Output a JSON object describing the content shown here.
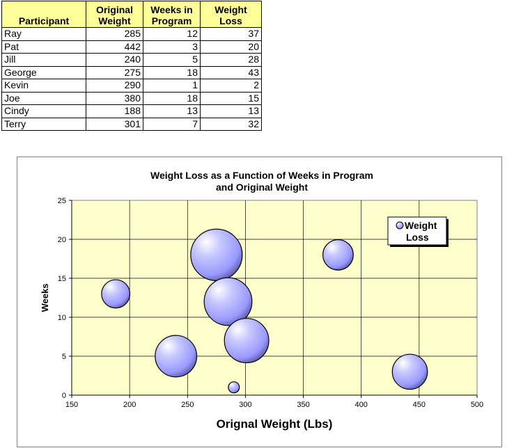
{
  "table": {
    "headers": [
      [
        "Participant"
      ],
      [
        "Original",
        "Weight"
      ],
      [
        "Weeks in",
        "Program"
      ],
      [
        "Weight",
        "Loss"
      ]
    ],
    "rows": [
      [
        "Ray",
        "285",
        "12",
        "37"
      ],
      [
        "Pat",
        "442",
        "3",
        "20"
      ],
      [
        "Jill",
        "240",
        "5",
        "28"
      ],
      [
        "George",
        "275",
        "18",
        "43"
      ],
      [
        "Kevin",
        "290",
        "1",
        "2"
      ],
      [
        "Joe",
        "380",
        "18",
        "15"
      ],
      [
        "Cindy",
        "188",
        "13",
        "13"
      ],
      [
        "Terry",
        "301",
        "7",
        "32"
      ]
    ],
    "header_color": "#ffff99"
  },
  "chart_data": {
    "type": "bubble",
    "title": [
      "Weight Loss as a Function of Weeks in Program",
      "and Original Weight"
    ],
    "xlabel": "Orignal Weight (Lbs)",
    "ylabel": "Weeks",
    "xlim": [
      150,
      500
    ],
    "ylim": [
      0,
      25
    ],
    "xticks": [
      150,
      200,
      250,
      300,
      350,
      400,
      450,
      500
    ],
    "yticks": [
      0,
      5,
      10,
      15,
      20,
      25
    ],
    "grid": true,
    "legend_position": "top-right",
    "plot_background": "#ffffcc",
    "bubble_color": "#9999ff",
    "series": [
      {
        "name": "Weight Loss",
        "points": [
          {
            "x": 285,
            "y": 12,
            "size": 37
          },
          {
            "x": 442,
            "y": 3,
            "size": 20
          },
          {
            "x": 240,
            "y": 5,
            "size": 28
          },
          {
            "x": 275,
            "y": 18,
            "size": 43
          },
          {
            "x": 290,
            "y": 1,
            "size": 2
          },
          {
            "x": 380,
            "y": 18,
            "size": 15
          },
          {
            "x": 188,
            "y": 13,
            "size": 13
          },
          {
            "x": 301,
            "y": 7,
            "size": 32
          }
        ]
      }
    ],
    "legend_lines": [
      "Weight",
      "Loss"
    ]
  }
}
